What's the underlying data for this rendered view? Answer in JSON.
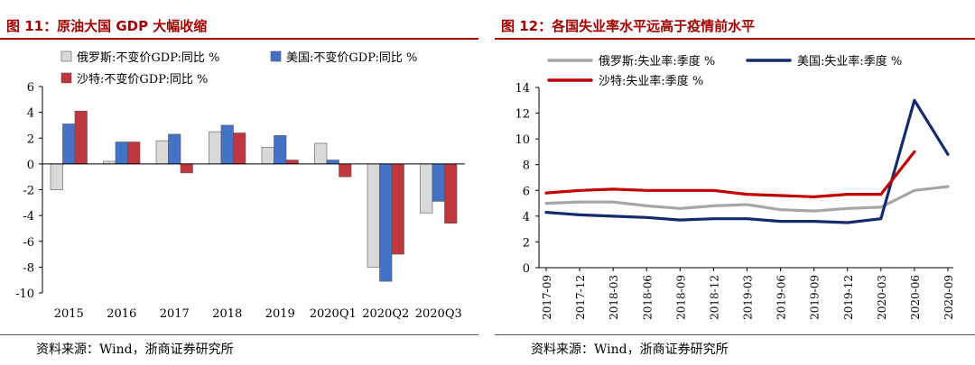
{
  "left_panel": {
    "title": "图 11：原油大国 GDP 大幅收缩",
    "source": "资料来源：Wind，浙商证券研究所"
  },
  "right_panel": {
    "title": "图 12：各国失业率水平远高于疫情前水平",
    "source": "资料来源：Wind，浙商证券研究所"
  },
  "chart_data": [
    {
      "type": "bar",
      "title": "原油大国 GDP 大幅收缩",
      "categories": [
        "2015",
        "2016",
        "2017",
        "2018",
        "2019",
        "2020Q1",
        "2020Q2",
        "2020Q3"
      ],
      "ylim": [
        -10,
        6
      ],
      "yticks": [
        6,
        4,
        2,
        0,
        -2,
        -4,
        -6,
        -8,
        -10
      ],
      "series": [
        {
          "name": "俄罗斯:不变价GDP:同比 %",
          "color": "#d9d9d9",
          "values": [
            -2.0,
            0.2,
            1.8,
            2.5,
            1.3,
            1.6,
            -8.0,
            -3.8
          ]
        },
        {
          "name": "美国:不变价GDP:同比 %",
          "color": "#4472c4",
          "values": [
            3.1,
            1.7,
            2.3,
            3.0,
            2.2,
            0.3,
            -9.1,
            -2.9
          ]
        },
        {
          "name": "沙特:不变价GDP:同比 %",
          "color": "#c0373f",
          "values": [
            4.1,
            1.7,
            -0.7,
            2.4,
            0.3,
            -1.0,
            -7.0,
            -4.6
          ]
        }
      ]
    },
    {
      "type": "line",
      "title": "各国失业率水平远高于疫情前水平",
      "categories": [
        "2017-09",
        "2017-12",
        "2018-03",
        "2018-06",
        "2018-09",
        "2018-12",
        "2019-03",
        "2019-06",
        "2019-09",
        "2019-12",
        "2020-03",
        "2020-06",
        "2020-09"
      ],
      "ylim": [
        0,
        14
      ],
      "yticks": [
        14,
        12,
        10,
        8,
        6,
        4,
        2,
        0
      ],
      "series": [
        {
          "name": "俄罗斯:失业率:季度 %",
          "color": "#a6a6a6",
          "values": [
            5.0,
            5.1,
            5.1,
            4.8,
            4.6,
            4.8,
            4.9,
            4.5,
            4.4,
            4.6,
            4.7,
            6.0,
            6.3
          ]
        },
        {
          "name": "美国:失业率:季度 %",
          "color": "#142a6b",
          "values": [
            4.3,
            4.1,
            4.0,
            3.9,
            3.7,
            3.8,
            3.8,
            3.6,
            3.6,
            3.5,
            3.8,
            13.0,
            8.8
          ]
        },
        {
          "name": "沙特:失业率:季度 %",
          "color": "#c00000",
          "values": [
            5.8,
            6.0,
            6.1,
            6.0,
            6.0,
            6.0,
            5.7,
            5.6,
            5.5,
            5.7,
            5.7,
            9.0,
            null
          ]
        }
      ]
    }
  ]
}
